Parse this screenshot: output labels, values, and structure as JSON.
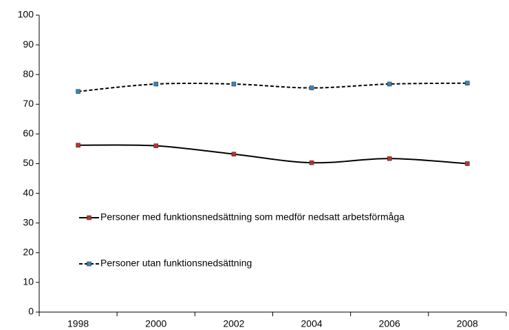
{
  "chart_data": {
    "type": "line",
    "categories": [
      "1998",
      "2000",
      "2002",
      "2004",
      "2006",
      "2008"
    ],
    "series": [
      {
        "name": "Personer med funktionsnedsättning som medför nedsatt arbetsförmåga",
        "color": "#000000",
        "marker_color": "#c0302a",
        "line_style": "solid",
        "values": [
          56.2,
          56.0,
          53.2,
          50.3,
          51.7,
          50.0
        ]
      },
      {
        "name": "Personer utan funktionsnedsättning",
        "color": "#000000",
        "marker_color": "#2f86c6",
        "line_style": "dashed",
        "values": [
          74.3,
          76.8,
          76.8,
          75.5,
          76.8,
          77.1
        ]
      }
    ],
    "ylim": [
      0,
      100
    ],
    "yticks": [
      0,
      10,
      20,
      30,
      40,
      50,
      60,
      70,
      80,
      90,
      100
    ],
    "grid": false,
    "smooth": true,
    "legend": "left"
  }
}
